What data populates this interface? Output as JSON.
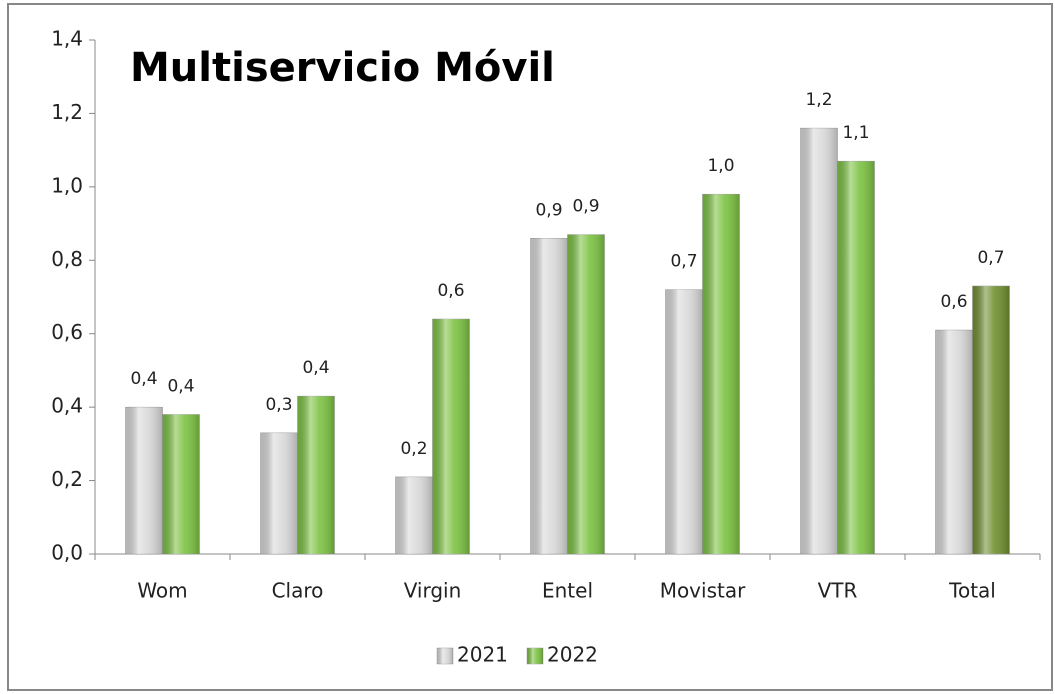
{
  "chart_data": {
    "type": "bar",
    "title": "Multiservicio Móvil",
    "categories": [
      "Wom",
      "Claro",
      "Virgin",
      "Entel",
      "Movistar",
      "VTR",
      "Total"
    ],
    "series": [
      {
        "name": "2021",
        "color": "#d9d9d9",
        "values": [
          0.4,
          0.33,
          0.21,
          0.86,
          0.72,
          1.16,
          0.61
        ],
        "value_labels": [
          "0,4",
          "0,3",
          "0,2",
          "0,9",
          "0,7",
          "1,2",
          "0,6"
        ]
      },
      {
        "name": "2022",
        "color": "#7cc242",
        "colors": [
          "#7cc242",
          "#7cc242",
          "#7cc242",
          "#7cc242",
          "#7cc242",
          "#7cc242",
          "#6f8f2f"
        ],
        "values": [
          0.38,
          0.43,
          0.64,
          0.87,
          0.98,
          1.07,
          0.73
        ],
        "value_labels": [
          "0,4",
          "0,4",
          "0,6",
          "0,9",
          "1,0",
          "1,1",
          "0,7"
        ]
      }
    ],
    "ylim": [
      0,
      1.4
    ],
    "yticks": [
      {
        "value": 0,
        "label": "0,0"
      },
      {
        "value": 0.2,
        "label": "0,2"
      },
      {
        "value": 0.4,
        "label": "0,4"
      },
      {
        "value": 0.6,
        "label": "0,6"
      },
      {
        "value": 0.8,
        "label": "0,8"
      },
      {
        "value": 1.0,
        "label": "1,0"
      },
      {
        "value": 1.2,
        "label": "1,2"
      },
      {
        "value": 1.4,
        "label": "1,4"
      }
    ],
    "grid": false,
    "legend": "bottom"
  }
}
